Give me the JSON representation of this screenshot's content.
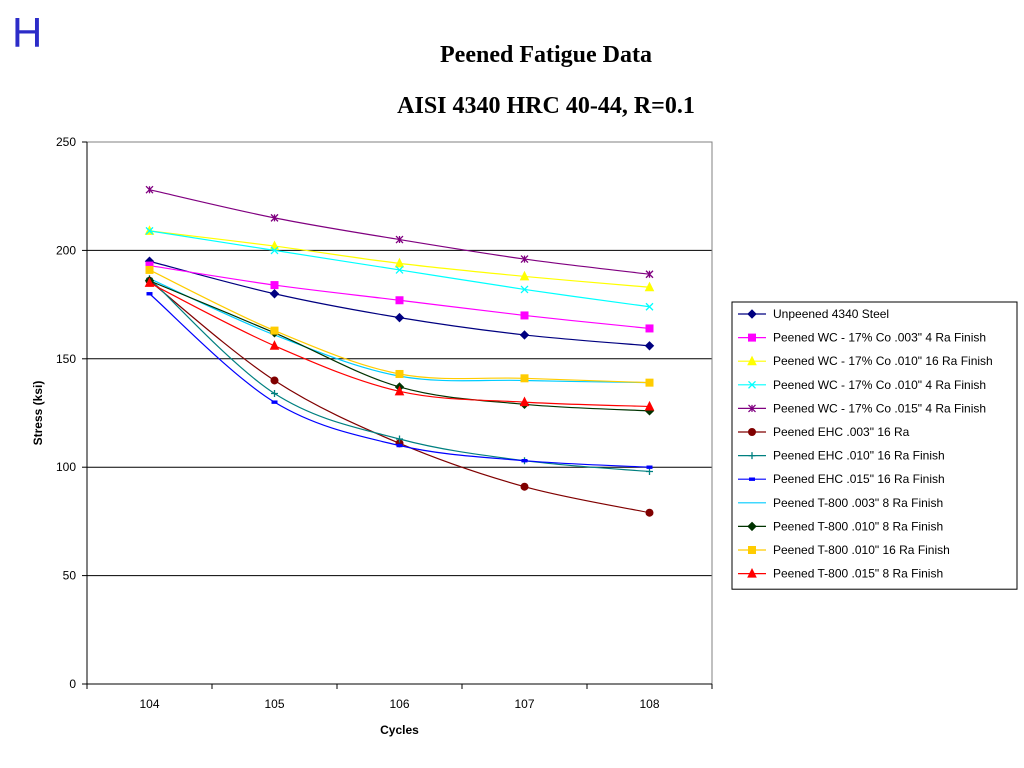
{
  "slide": {
    "letter": "H"
  },
  "chart_data": {
    "type": "line",
    "title": "Peened Fatigue Data",
    "subtitle": "AISI 4340 HRC 40-44, R=0.1",
    "xlabel": "Cycles",
    "ylabel": "Stress (ksi)",
    "x": [
      104,
      105,
      106,
      107,
      108
    ],
    "ylim": [
      0,
      250
    ],
    "yticks": [
      0,
      50,
      100,
      150,
      200,
      250
    ],
    "grid": "horizontal major lines at 50, 100, 150, 200",
    "legend_position": "right",
    "series": [
      {
        "name": "Unpeened 4340 Steel",
        "color": "#000080",
        "marker": "diamond",
        "values": [
          195,
          180,
          169,
          161,
          156
        ]
      },
      {
        "name": "Peened WC - 17% Co .003\" 4 Ra Finish",
        "color": "#ff00ff",
        "marker": "square",
        "values": [
          193,
          184,
          177,
          170,
          164
        ]
      },
      {
        "name": "Peened WC - 17% Co .010\" 16 Ra Finish",
        "color": "#ffff00",
        "marker": "triangle",
        "values": [
          209,
          202,
          194,
          188,
          183
        ]
      },
      {
        "name": "Peened WC - 17% Co .010\" 4 Ra Finish",
        "color": "#00ffff",
        "marker": "x",
        "values": [
          209,
          200,
          191,
          182,
          174
        ]
      },
      {
        "name": "Peened WC - 17% Co .015\" 4 Ra Finish",
        "color": "#800080",
        "marker": "star",
        "values": [
          228,
          215,
          205,
          196,
          189
        ]
      },
      {
        "name": "Peened EHC .003\" 16 Ra",
        "color": "#800000",
        "marker": "circle",
        "values": [
          186,
          140,
          111,
          91,
          79
        ]
      },
      {
        "name": "Peened EHC .010\" 16 Ra Finish",
        "color": "#008080",
        "marker": "plus",
        "values": [
          187,
          134,
          113,
          103,
          98
        ]
      },
      {
        "name": "Peened EHC .015\" 16 Ra Finish",
        "color": "#0000ff",
        "marker": "dash",
        "values": [
          180,
          130,
          110,
          103,
          100
        ]
      },
      {
        "name": "Peened T-800 .003\" 8 Ra Finish",
        "color": "#00ccff",
        "marker": "none",
        "values": [
          187,
          161,
          142,
          140,
          139
        ]
      },
      {
        "name": "Peened T-800 .010\" 8 Ra Finish",
        "color": "#003300",
        "marker": "diamond",
        "values": [
          186,
          162,
          137,
          129,
          126
        ]
      },
      {
        "name": "Peened T-800 .010\" 16 Ra Finish",
        "color": "#ffcc00",
        "marker": "square",
        "values": [
          191,
          163,
          143,
          141,
          139
        ]
      },
      {
        "name": "Peened T-800 .015\" 8 Ra Finish",
        "color": "#ff0000",
        "marker": "triangle",
        "values": [
          185,
          156,
          135,
          130,
          128
        ]
      }
    ]
  }
}
